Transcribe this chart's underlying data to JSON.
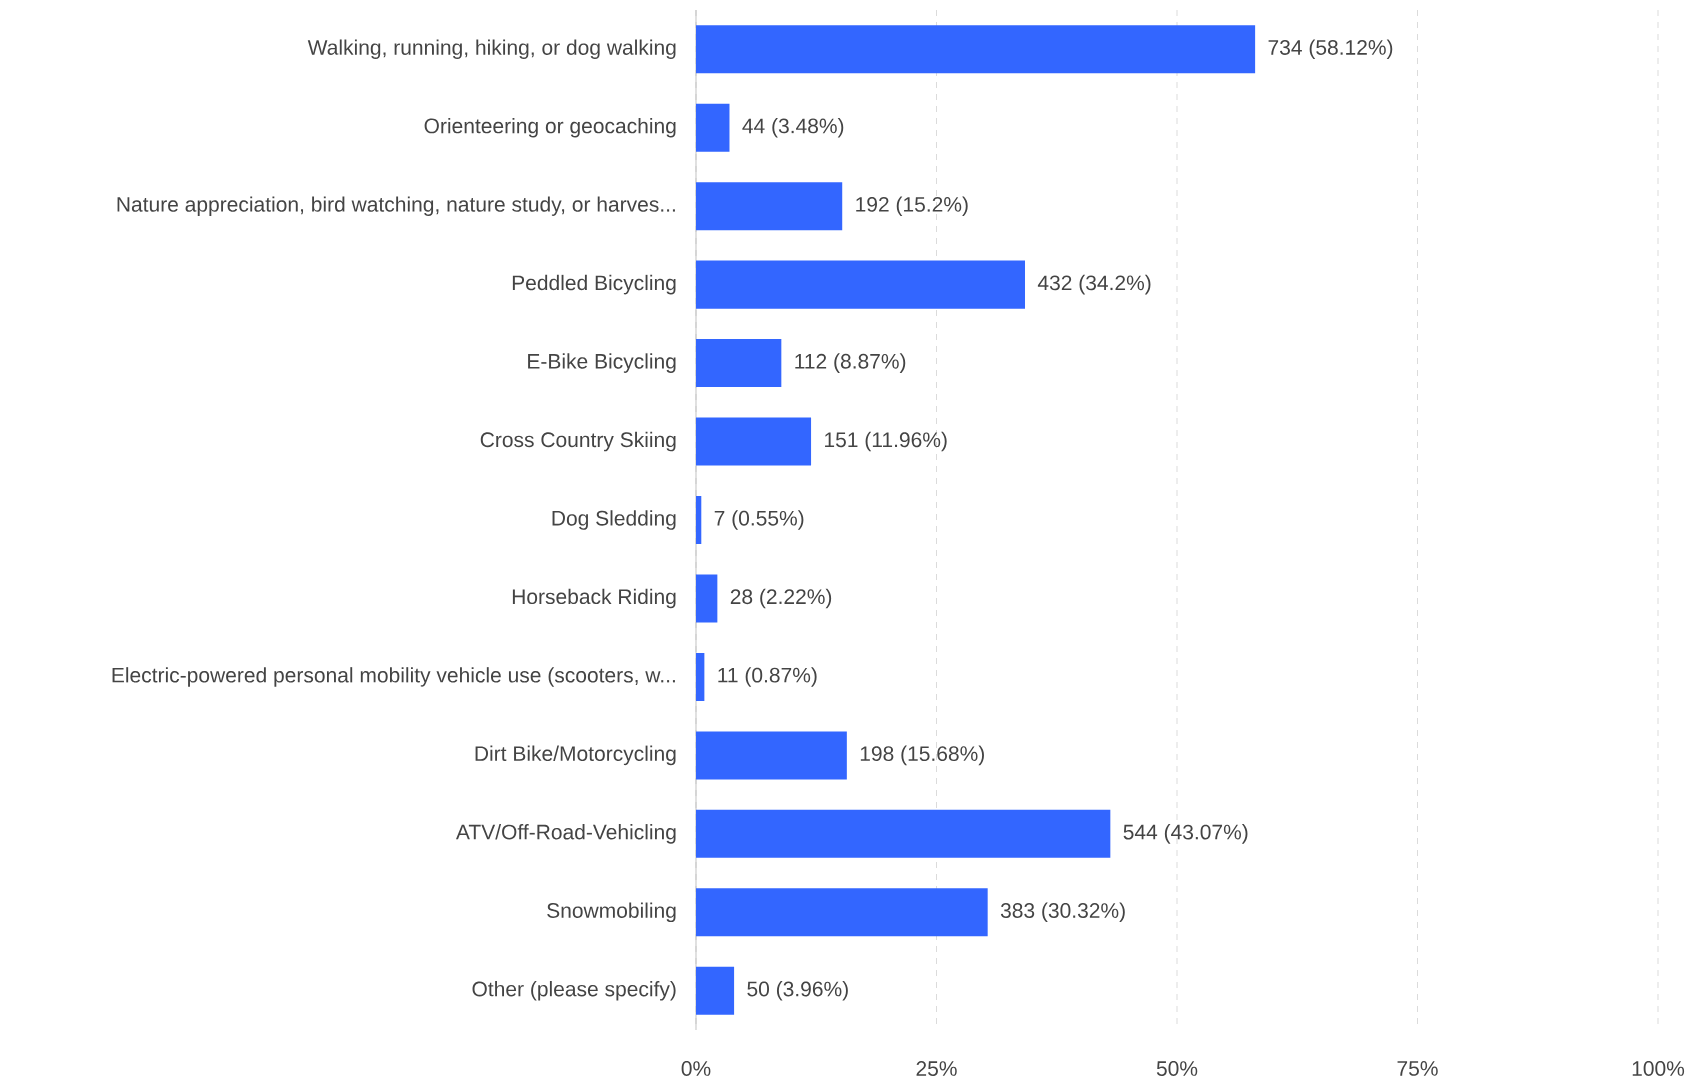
{
  "chart_data": {
    "type": "bar",
    "orientation": "horizontal",
    "categories": [
      "Walking, running, hiking, or dog walking",
      "Orienteering or geocaching",
      "Nature appreciation, bird watching, nature study, or harves...",
      "Peddled Bicycling",
      "E-Bike Bicycling",
      "Cross Country Skiing",
      "Dog Sledding",
      "Horseback Riding",
      "Electric-powered personal mobility vehicle use (scooters, w...",
      "Dirt Bike/Motorcycling",
      "ATV/Off-Road-Vehicling",
      "Snowmobiling",
      "Other (please specify)"
    ],
    "values": [
      58.12,
      3.48,
      15.2,
      34.2,
      8.87,
      11.96,
      0.55,
      2.22,
      0.87,
      15.68,
      43.07,
      30.32,
      3.96
    ],
    "value_labels": [
      "734 (58.12%)",
      "44 (3.48%)",
      "192 (15.2%)",
      "432 (34.2%)",
      "112 (8.87%)",
      "151 (11.96%)",
      "7 (0.55%)",
      "28 (2.22%)",
      "11 (0.87%)",
      "198 (15.68%)",
      "544 (43.07%)",
      "383 (30.32%)",
      "50 (3.96%)"
    ],
    "color": "#3366ff",
    "xlim": [
      0,
      100
    ],
    "xticks": [
      {
        "value": 0,
        "label": "0%"
      },
      {
        "value": 25,
        "label": "25%"
      },
      {
        "value": 50,
        "label": "50%"
      },
      {
        "value": 75,
        "label": "75%"
      },
      {
        "value": 100,
        "label": "100%"
      }
    ],
    "grid": "x"
  }
}
